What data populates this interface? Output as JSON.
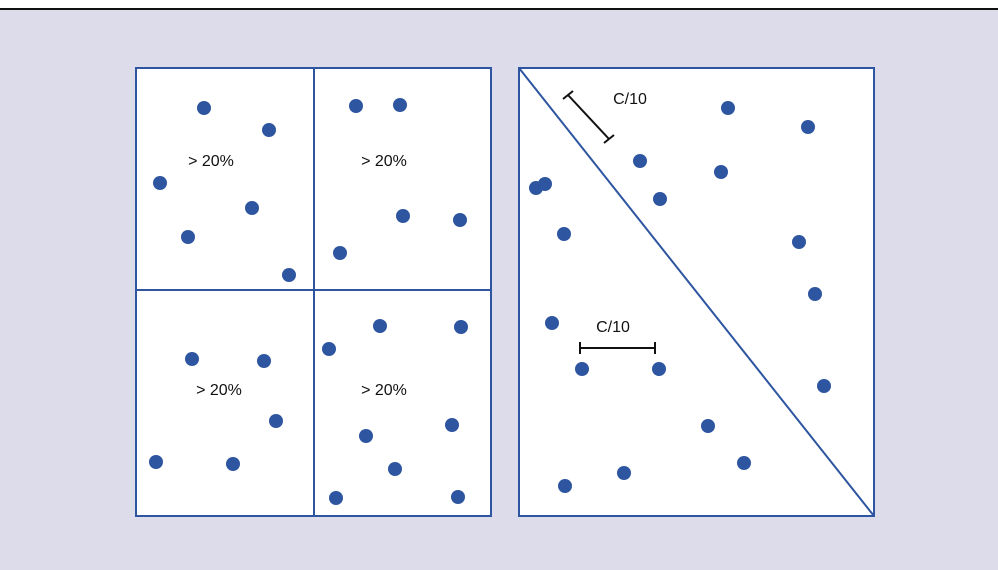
{
  "colors": {
    "accent": "#2d55a0",
    "background": "#dcdcea",
    "box": "#ffffff",
    "text": "#111111"
  },
  "left_figure": {
    "quadrant_labels": [
      "> 20%",
      "> 20%",
      "> 20%",
      "> 20%"
    ]
  },
  "right_figure": {
    "upper_label": "C/10",
    "lower_label": "C/10"
  }
}
